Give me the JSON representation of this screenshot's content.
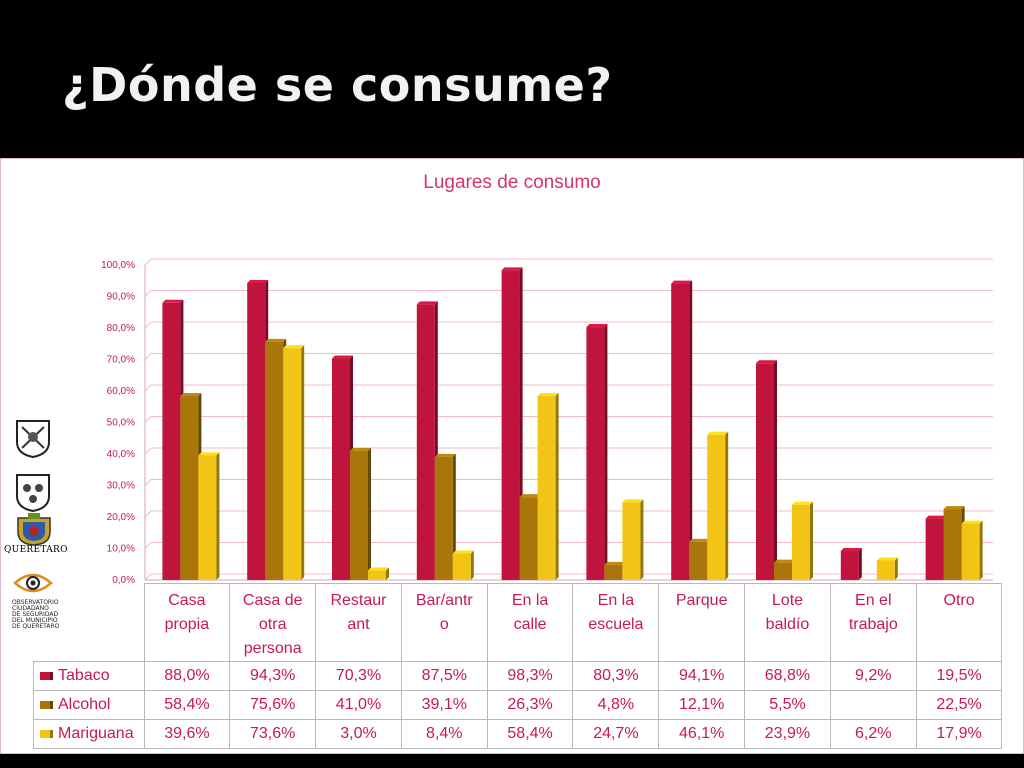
{
  "slide": {
    "title": "¿Dónde se consume?"
  },
  "logos": {
    "city_name": "QUERÉTARO",
    "observatory_caption": [
      "OBSERVATORIO",
      "CIUDADANO",
      "DE SEGURIDAD",
      "DEL MUNICIPIO",
      "DE QUERÉTARO"
    ]
  },
  "chart_data": {
    "type": "bar",
    "title": "Lugares de consumo",
    "categories": [
      "Casa\npropia",
      "Casa de\notra\npersona",
      "Restaur\nant",
      "Bar/antr\no",
      "En la\ncalle",
      "En la\nescuela",
      "Parque",
      "Lote\nbaldío",
      "En el\ntrabajo",
      "Otro"
    ],
    "series": [
      {
        "name": "Tabaco",
        "color": "#c1143d",
        "values": [
          88.0,
          94.3,
          70.3,
          87.5,
          98.3,
          80.3,
          94.1,
          68.8,
          9.2,
          19.5
        ],
        "labels": [
          "88,0%",
          "94,3%",
          "70,3%",
          "87,5%",
          "98,3%",
          "80,3%",
          "94,1%",
          "68,8%",
          "9,2%",
          "19,5%"
        ]
      },
      {
        "name": "Alcohol",
        "color": "#a8760a",
        "values": [
          58.4,
          75.6,
          41.0,
          39.1,
          26.3,
          4.8,
          12.1,
          5.5,
          null,
          22.5
        ],
        "labels": [
          "58,4%",
          "75,6%",
          "41,0%",
          "39,1%",
          "26,3%",
          "4,8%",
          "12,1%",
          "5,5%",
          "",
          "22,5%"
        ]
      },
      {
        "name": "Mariguana",
        "color": "#f2c415",
        "values": [
          39.6,
          73.6,
          3.0,
          8.4,
          58.4,
          24.7,
          46.1,
          23.9,
          6.2,
          17.9
        ],
        "labels": [
          "39,6%",
          "73,6%",
          "3,0%",
          "8,4%",
          "58,4%",
          "24,7%",
          "46,1%",
          "23,9%",
          "6,2%",
          "17,9%"
        ]
      }
    ],
    "ylim": [
      0,
      100
    ],
    "yticks": [
      "0,0%",
      "10,0%",
      "20,0%",
      "30,0%",
      "40,0%",
      "50,0%",
      "60,0%",
      "70,0%",
      "80,0%",
      "90,0%",
      "100,0%"
    ],
    "grid": true,
    "legend": "table-left",
    "data_table": true
  }
}
